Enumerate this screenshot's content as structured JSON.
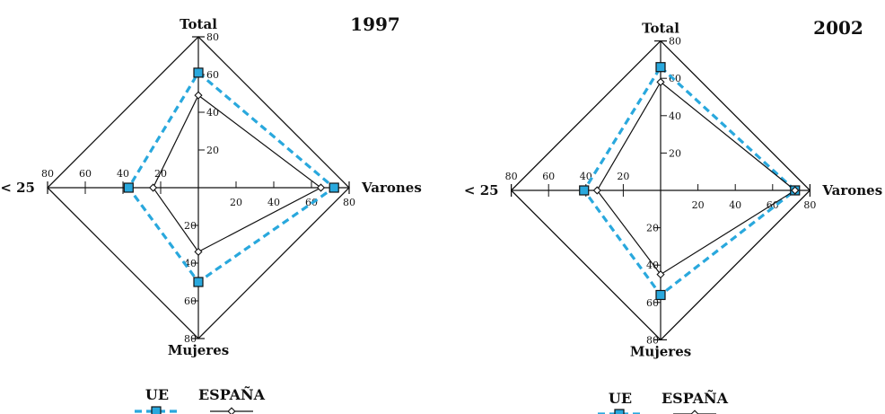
{
  "chart_data": [
    {
      "type": "radar",
      "title": "1997",
      "axes": [
        "Total",
        "Varones",
        "Mujeres",
        "< 25"
      ],
      "range": [
        0,
        80
      ],
      "ticks": [
        20,
        40,
        60,
        80
      ],
      "series": [
        {
          "name": "UE",
          "values": [
            61,
            72,
            50,
            37
          ],
          "color": "#29a8dd",
          "style": "dashed",
          "marker": "square"
        },
        {
          "name": "ESPAÑA",
          "values": [
            49,
            65,
            34,
            24
          ],
          "color": "#111111",
          "style": "solid",
          "marker": "diamond"
        }
      ]
    },
    {
      "type": "radar",
      "title": "2002",
      "axes": [
        "Total",
        "Varones",
        "Mujeres",
        "< 25"
      ],
      "range": [
        0,
        80
      ],
      "ticks": [
        20,
        40,
        60,
        80
      ],
      "series": [
        {
          "name": "UE",
          "values": [
            66,
            72,
            56,
            41
          ],
          "color": "#29a8dd",
          "style": "dashed",
          "marker": "square"
        },
        {
          "name": "ESPAÑA",
          "values": [
            58,
            72,
            45,
            34
          ],
          "color": "#111111",
          "style": "solid",
          "marker": "diamond"
        }
      ]
    }
  ],
  "legend": [
    {
      "label": "UE",
      "color": "#29a8dd",
      "style": "dashed",
      "marker": "square"
    },
    {
      "label": "ESPAÑA",
      "color": "#111111",
      "style": "solid",
      "marker": "diamond"
    }
  ]
}
